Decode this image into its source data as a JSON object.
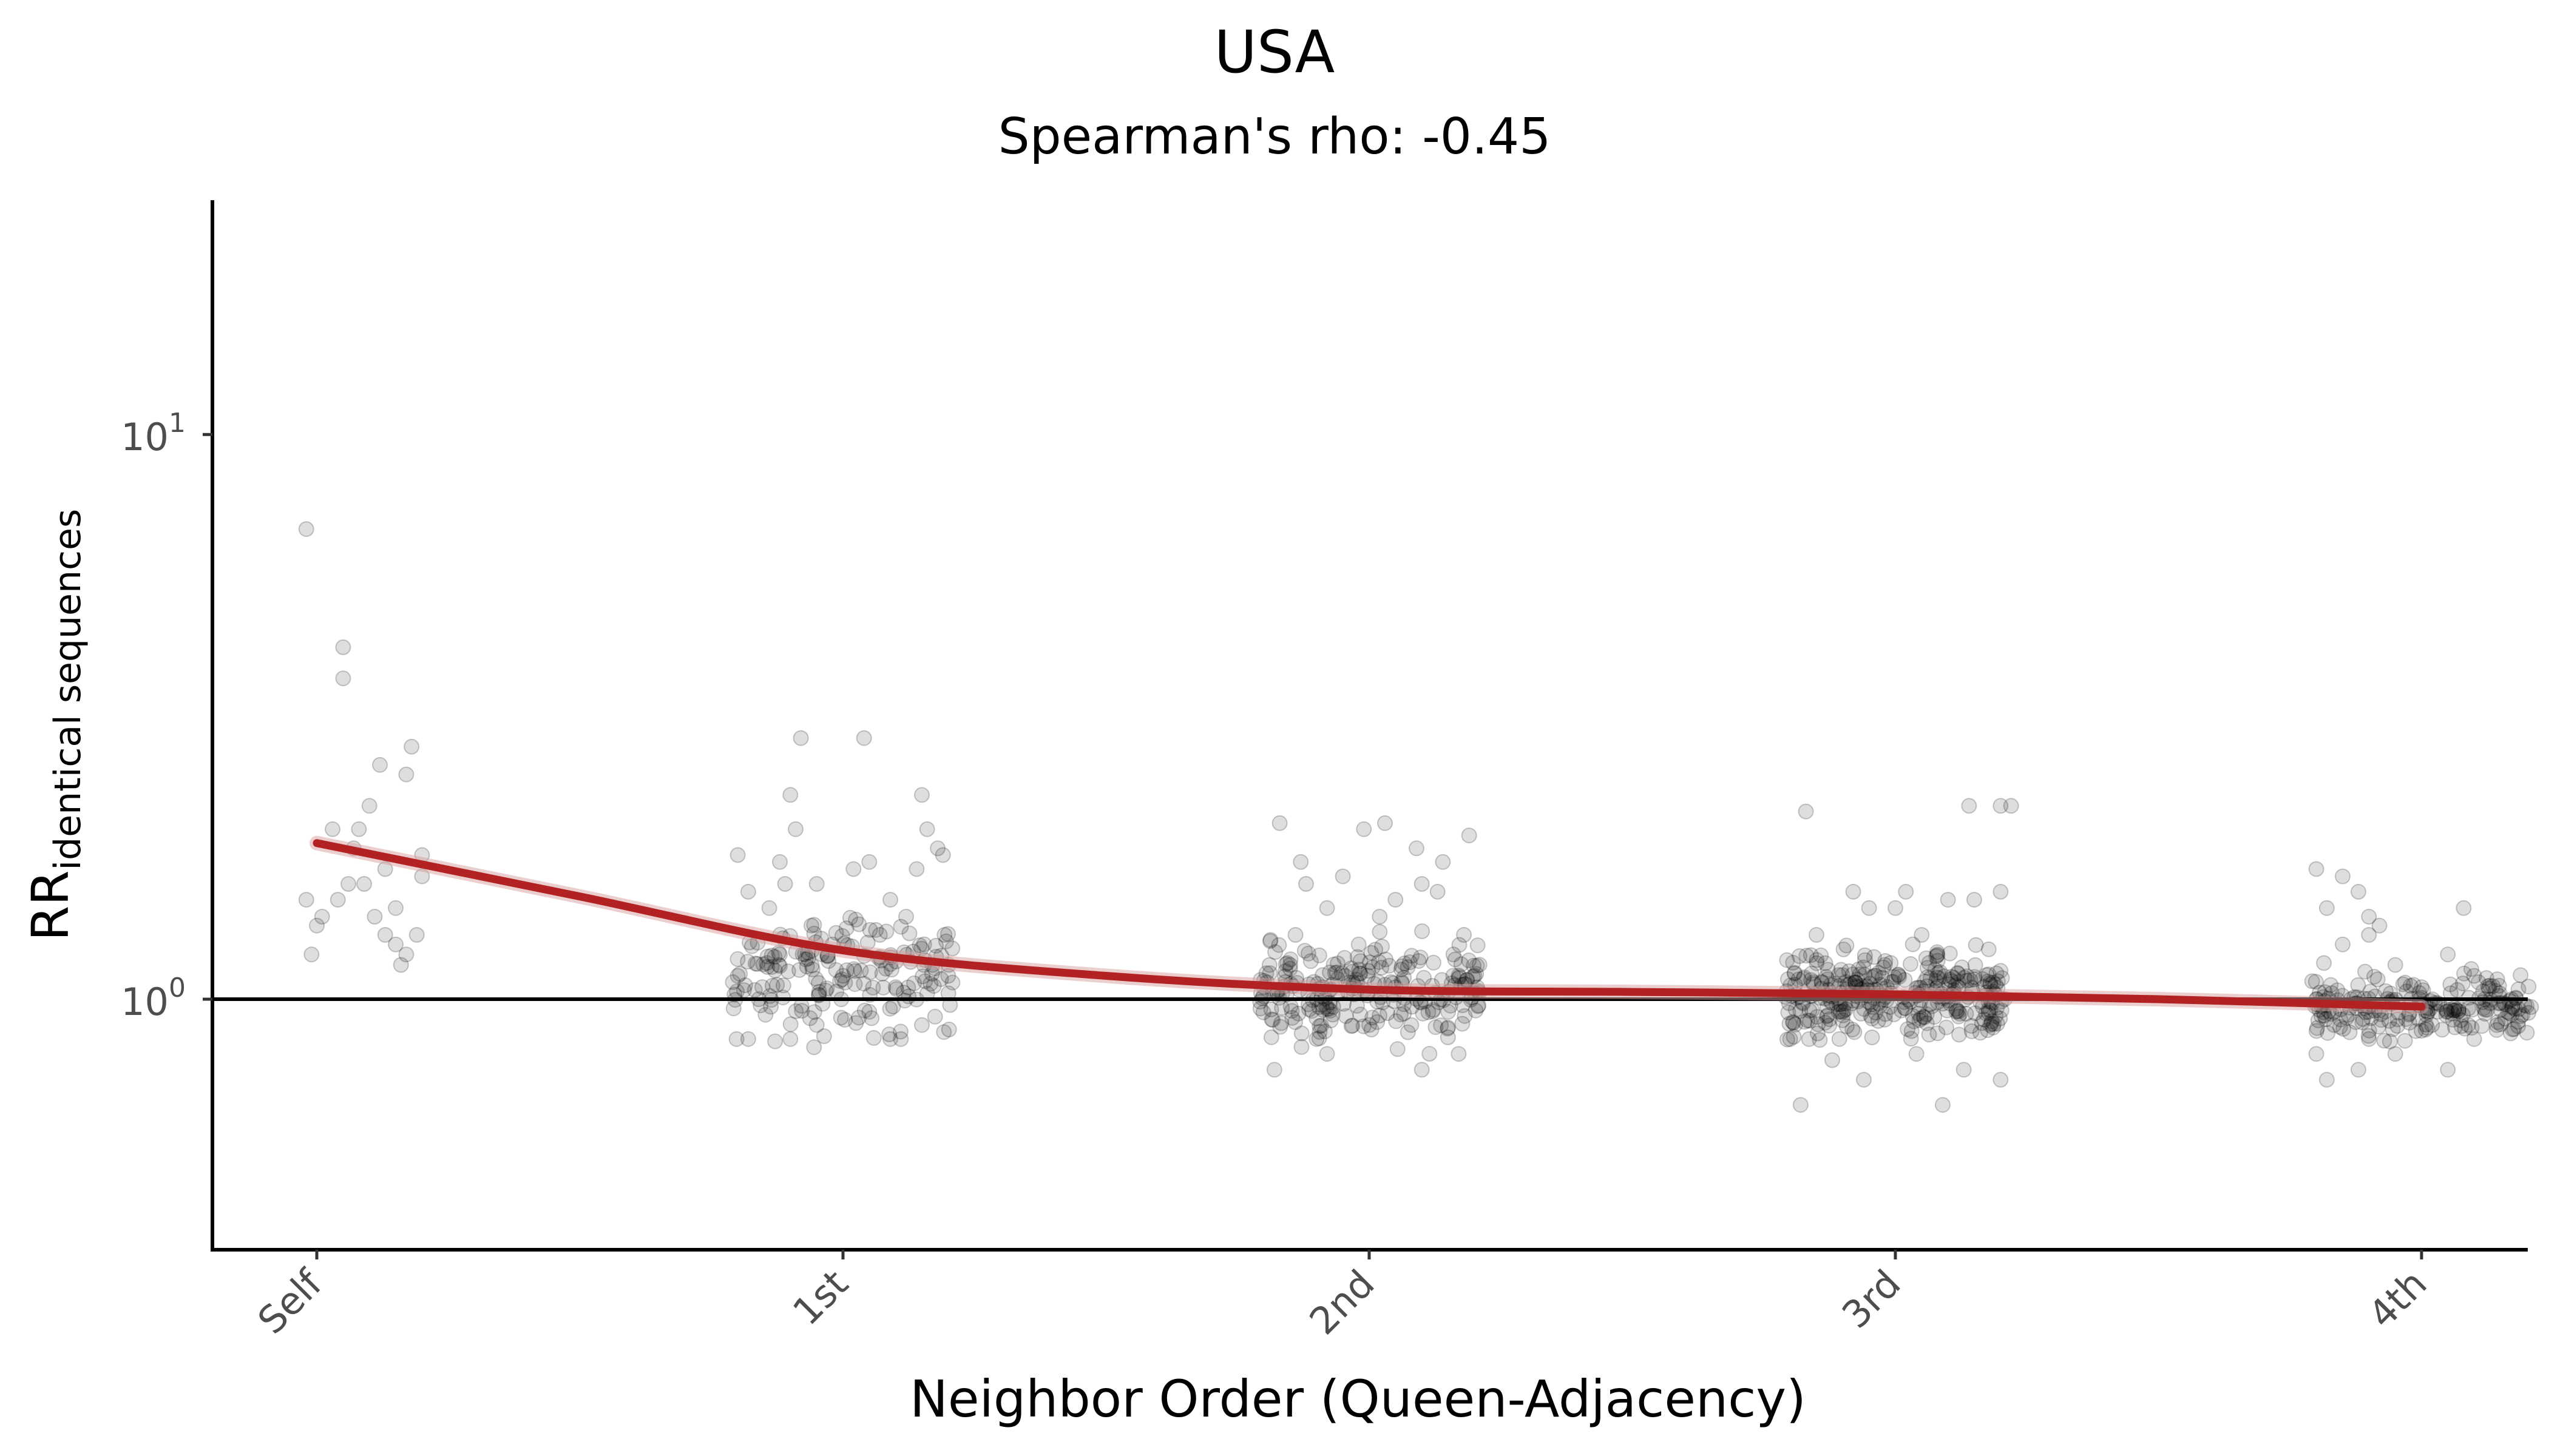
{
  "chart_data": {
    "type": "scatter",
    "title": "USA",
    "subtitle": "Spearman's rho: -0.45",
    "xlabel": "Neighbor Order (Queen-Adjacency)",
    "ylabel_main": "RR",
    "ylabel_subscript": "identical sequences",
    "categories": [
      "Self",
      "1st",
      "2nd",
      "3rd",
      "4th"
    ],
    "y_scale": "log10",
    "ylim": [
      0.36,
      26
    ],
    "y_ticks": [
      {
        "value": 1,
        "base": "10",
        "exp": "0"
      },
      {
        "value": 10,
        "base": "10",
        "exp": "1"
      }
    ],
    "reference_line": {
      "y": 1,
      "color": "#000000"
    },
    "fit_line": {
      "color": "#b22222",
      "points": [
        [
          0,
          1.89
        ],
        [
          0.5,
          1.52
        ],
        [
          1,
          1.22
        ],
        [
          1.5,
          1.1
        ],
        [
          2,
          1.04
        ],
        [
          2.5,
          1.03
        ],
        [
          3,
          1.02
        ],
        [
          3.5,
          1.0
        ],
        [
          4,
          0.97
        ]
      ]
    },
    "point_color": "#000000",
    "point_opacity": 0.13,
    "series": [
      {
        "category": "Self",
        "points": [
          [
            -0.02,
            6.8
          ],
          [
            0.05,
            4.2
          ],
          [
            0.05,
            3.7
          ],
          [
            0.12,
            2.6
          ],
          [
            0.17,
            2.5
          ],
          [
            0.18,
            2.8
          ],
          [
            0.1,
            2.2
          ],
          [
            0.03,
            2.0
          ],
          [
            0.08,
            2.0
          ],
          [
            0.2,
            1.8
          ],
          [
            0.13,
            1.7
          ],
          [
            0.06,
            1.6
          ],
          [
            0.09,
            1.6
          ],
          [
            -0.02,
            1.5
          ],
          [
            0.04,
            1.5
          ],
          [
            0.15,
            1.45
          ],
          [
            0.01,
            1.4
          ],
          [
            0.11,
            1.4
          ],
          [
            0.13,
            1.3
          ],
          [
            0.19,
            1.3
          ],
          [
            0.15,
            1.25
          ],
          [
            -0.01,
            1.2
          ],
          [
            0.17,
            1.2
          ],
          [
            0.16,
            1.15
          ],
          [
            0.2,
            1.65
          ],
          [
            0.0,
            1.35
          ],
          [
            0.07,
            1.85
          ]
        ]
      },
      {
        "category": "1st",
        "points": [
          [
            -0.08,
            2.9
          ],
          [
            0.04,
            2.9
          ],
          [
            0.15,
            2.3
          ],
          [
            -0.1,
            2.3
          ],
          [
            0.16,
            2.0
          ],
          [
            -0.09,
            2.0
          ],
          [
            0.18,
            1.85
          ],
          [
            -0.2,
            1.8
          ],
          [
            0.05,
            1.75
          ],
          [
            -0.12,
            1.75
          ],
          [
            0.19,
            1.8
          ],
          [
            0.02,
            1.7
          ],
          [
            -0.11,
            1.6
          ],
          [
            0.14,
            1.7
          ],
          [
            -0.05,
            1.6
          ],
          [
            -0.18,
            1.55
          ],
          [
            0.09,
            1.5
          ],
          [
            -0.14,
            1.45
          ],
          [
            0.12,
            1.4
          ],
          [
            -0.06,
            1.35
          ],
          [
            0.07,
            1.3
          ],
          [
            -0.02,
            1.25
          ],
          [
            -0.12,
            1.2
          ],
          [
            0.17,
            1.15
          ],
          [
            0.0,
            1.1
          ],
          [
            0.1,
            1.05
          ],
          [
            -0.16,
            1.0
          ],
          [
            0.05,
            0.95
          ],
          [
            -0.18,
            0.85
          ],
          [
            0.09,
            0.85
          ],
          [
            0.11,
            0.85
          ],
          [
            -0.1,
            0.85
          ],
          [
            0.15,
            0.9
          ],
          [
            -0.05,
            0.9
          ],
          [
            -0.2,
            1.1
          ],
          [
            0.2,
            1.1
          ]
        ]
      },
      {
        "category": "2nd",
        "points": [
          [
            -0.17,
            2.05
          ],
          [
            0.03,
            2.05
          ],
          [
            0.19,
            1.95
          ],
          [
            -0.01,
            2.0
          ],
          [
            0.09,
            1.85
          ],
          [
            -0.13,
            1.75
          ],
          [
            0.14,
            1.75
          ],
          [
            -0.05,
            1.65
          ],
          [
            -0.12,
            1.6
          ],
          [
            0.1,
            1.6
          ],
          [
            0.13,
            1.55
          ],
          [
            0.05,
            1.5
          ],
          [
            -0.08,
            1.45
          ],
          [
            0.02,
            1.4
          ],
          [
            0.18,
            1.3
          ],
          [
            -0.14,
            1.3
          ],
          [
            -0.02,
            1.25
          ],
          [
            0.16,
            1.2
          ],
          [
            -0.18,
            0.75
          ],
          [
            0.1,
            0.75
          ],
          [
            -0.08,
            0.8
          ],
          [
            0.17,
            0.8
          ],
          [
            -0.1,
            0.85
          ],
          [
            0.0,
            0.9
          ],
          [
            0.08,
            0.9
          ],
          [
            -0.15,
            1.15
          ],
          [
            0.05,
            1.05
          ],
          [
            0.2,
            1.1
          ],
          [
            -0.2,
            1.05
          ],
          [
            0.15,
            0.95
          ]
        ]
      },
      {
        "category": "3rd",
        "points": [
          [
            -0.18,
            0.65
          ],
          [
            0.09,
            0.65
          ],
          [
            -0.17,
            2.15
          ],
          [
            0.14,
            2.2
          ],
          [
            0.2,
            2.2
          ],
          [
            0.22,
            2.2
          ],
          [
            -0.08,
            1.55
          ],
          [
            0.02,
            1.55
          ],
          [
            0.1,
            1.5
          ],
          [
            0.0,
            1.45
          ],
          [
            -0.05,
            1.45
          ],
          [
            0.15,
            1.5
          ],
          [
            0.2,
            1.55
          ],
          [
            -0.15,
            1.3
          ],
          [
            0.05,
            1.3
          ],
          [
            -0.12,
            0.78
          ],
          [
            -0.06,
            0.72
          ],
          [
            0.13,
            0.75
          ],
          [
            0.2,
            0.72
          ],
          [
            0.04,
            0.8
          ],
          [
            -0.2,
            0.85
          ],
          [
            0.18,
            0.9
          ],
          [
            -0.1,
            0.95
          ],
          [
            0.08,
            1.2
          ],
          [
            -0.02,
            1.15
          ],
          [
            0.12,
            1.05
          ]
        ]
      },
      {
        "category": "4th",
        "points": [
          [
            -0.2,
            1.7
          ],
          [
            -0.15,
            1.65
          ],
          [
            -0.12,
            1.55
          ],
          [
            -0.18,
            1.45
          ],
          [
            -0.1,
            1.4
          ],
          [
            -0.08,
            1.35
          ],
          [
            0.08,
            1.45
          ],
          [
            -0.1,
            1.3
          ],
          [
            -0.15,
            1.25
          ],
          [
            0.05,
            1.2
          ],
          [
            -0.05,
            1.15
          ],
          [
            0.1,
            1.1
          ],
          [
            0.0,
            1.05
          ],
          [
            -0.12,
            0.75
          ],
          [
            -0.18,
            0.72
          ],
          [
            -0.2,
            0.8
          ],
          [
            -0.05,
            0.8
          ],
          [
            0.05,
            0.75
          ],
          [
            0.1,
            0.85
          ],
          [
            -0.1,
            0.85
          ],
          [
            0.02,
            0.9
          ],
          [
            0.12,
            1.0
          ],
          [
            -0.07,
            0.95
          ],
          [
            -0.2,
            1.0
          ]
        ]
      }
    ]
  }
}
